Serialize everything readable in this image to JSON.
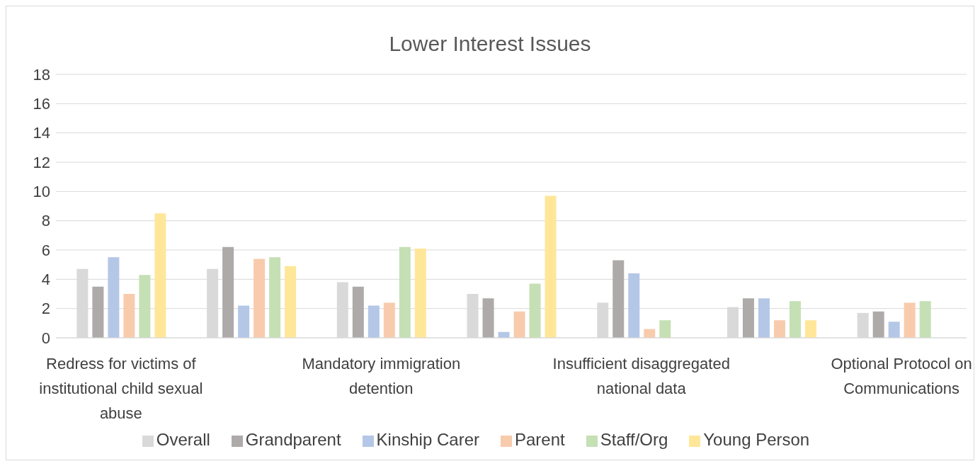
{
  "chart_data": {
    "type": "bar",
    "title": "Lower Interest Issues",
    "categories": [
      "Redress for victims of institutional child sexual abuse",
      null,
      "Mandatory immigration detention",
      null,
      "Insufficient disaggregated national data",
      null,
      "Optional Protocol on Communications"
    ],
    "series": [
      {
        "name": "Overall",
        "color": "#d9d9d9",
        "values": [
          4.7,
          4.7,
          3.8,
          3.0,
          2.4,
          2.1,
          1.7
        ]
      },
      {
        "name": "Grandparent",
        "color": "#aeaaaa",
        "values": [
          3.5,
          6.2,
          3.5,
          2.7,
          5.3,
          2.7,
          1.8
        ]
      },
      {
        "name": "Kinship Carer",
        "color": "#b4c7e7",
        "values": [
          5.5,
          2.2,
          2.2,
          0.4,
          4.4,
          2.7,
          1.1
        ]
      },
      {
        "name": "Parent",
        "color": "#f8cbad",
        "values": [
          3.0,
          5.4,
          2.4,
          1.8,
          0.6,
          1.2,
          2.4
        ]
      },
      {
        "name": "Staff/Org",
        "color": "#c5e0b4",
        "values": [
          4.3,
          5.5,
          6.2,
          3.7,
          1.2,
          2.5,
          2.5
        ]
      },
      {
        "name": "Young Person",
        "color": "#ffe699",
        "values": [
          8.5,
          4.9,
          6.1,
          9.7,
          0,
          1.2,
          0
        ]
      }
    ],
    "ylim": [
      0,
      18
    ],
    "yticks": [
      0,
      2,
      4,
      6,
      8,
      10,
      12,
      14,
      16,
      18
    ],
    "grid": "y",
    "legend": "bottom"
  }
}
